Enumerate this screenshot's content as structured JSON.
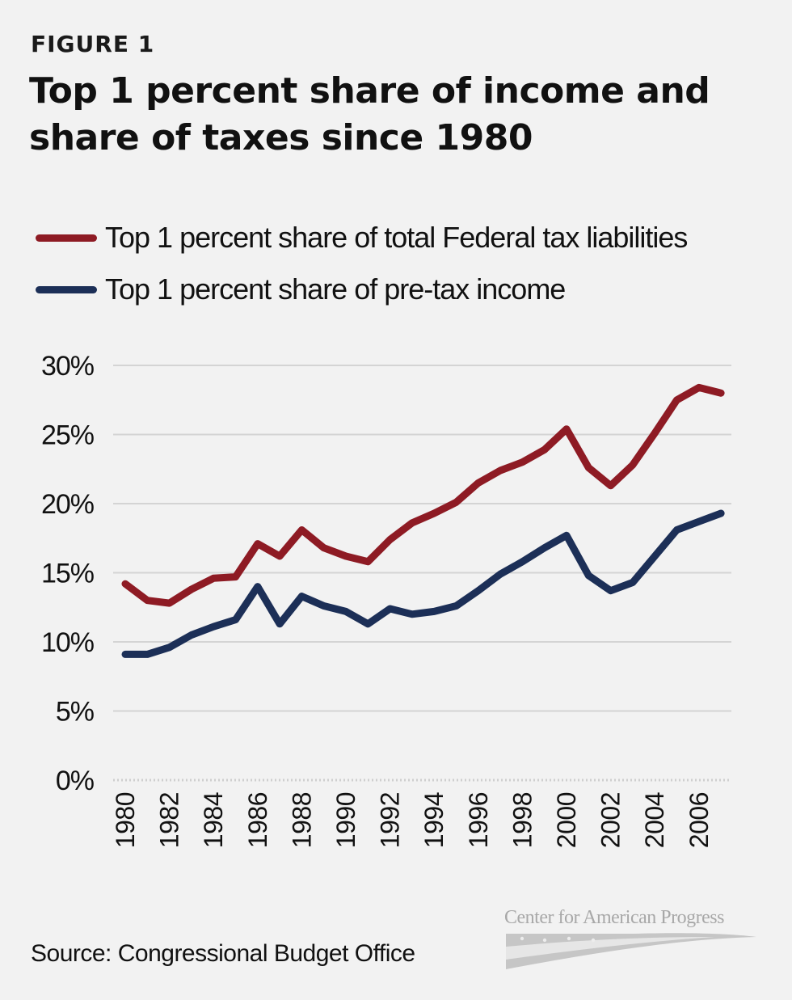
{
  "header": {
    "figure_label": "FIGURE 1",
    "title": "Top 1 percent share of income and share of taxes since 1980"
  },
  "legend": {
    "items": [
      {
        "label": "Top 1 percent share of total Federal tax liabilities",
        "color": "#8e1b24"
      },
      {
        "label": "Top 1 percent share of pre-tax income",
        "color": "#1c2f57"
      }
    ]
  },
  "footer": {
    "source": "Source: Congressional Budget Office",
    "logo_text": "Center for American Progress"
  },
  "chart_data": {
    "type": "line",
    "title": "Top 1 percent share of income and share of taxes since 1980",
    "xlabel": "",
    "ylabel": "",
    "x": [
      1980,
      1981,
      1982,
      1983,
      1984,
      1985,
      1986,
      1987,
      1988,
      1989,
      1990,
      1991,
      1992,
      1993,
      1994,
      1995,
      1996,
      1997,
      1998,
      1999,
      2000,
      2001,
      2002,
      2003,
      2004,
      2005,
      2006,
      2007
    ],
    "x_tick_labels": [
      "1980",
      "1982",
      "1984",
      "1986",
      "1988",
      "1990",
      "1992",
      "1994",
      "1996",
      "1998",
      "2000",
      "2002",
      "2004",
      "2006"
    ],
    "y_tick_labels": [
      "30%",
      "25%",
      "20%",
      "15%",
      "10%",
      "5%",
      "0%"
    ],
    "y_ticks": [
      30,
      25,
      20,
      15,
      10,
      5,
      0
    ],
    "ylim": [
      0,
      30
    ],
    "grid": true,
    "legend_position": "top-left",
    "series": [
      {
        "name": "Top 1 percent share of total Federal tax liabilities",
        "color": "#8e1b24",
        "values": [
          14.2,
          13.0,
          12.8,
          13.8,
          14.6,
          14.7,
          17.1,
          16.2,
          18.1,
          16.8,
          16.2,
          15.8,
          17.4,
          18.6,
          19.3,
          20.1,
          21.5,
          22.4,
          23.0,
          23.9,
          25.4,
          22.6,
          21.3,
          22.8,
          25.1,
          27.5,
          28.4,
          28.0
        ]
      },
      {
        "name": "Top 1 percent share of pre-tax income",
        "color": "#1c2f57",
        "values": [
          9.1,
          9.1,
          9.6,
          10.5,
          11.1,
          11.6,
          14.0,
          11.3,
          13.3,
          12.6,
          12.2,
          11.3,
          12.4,
          12.0,
          12.2,
          12.6,
          13.7,
          14.9,
          15.8,
          16.8,
          17.7,
          14.8,
          13.7,
          14.3,
          16.2,
          18.1,
          18.7,
          19.3
        ]
      }
    ]
  }
}
